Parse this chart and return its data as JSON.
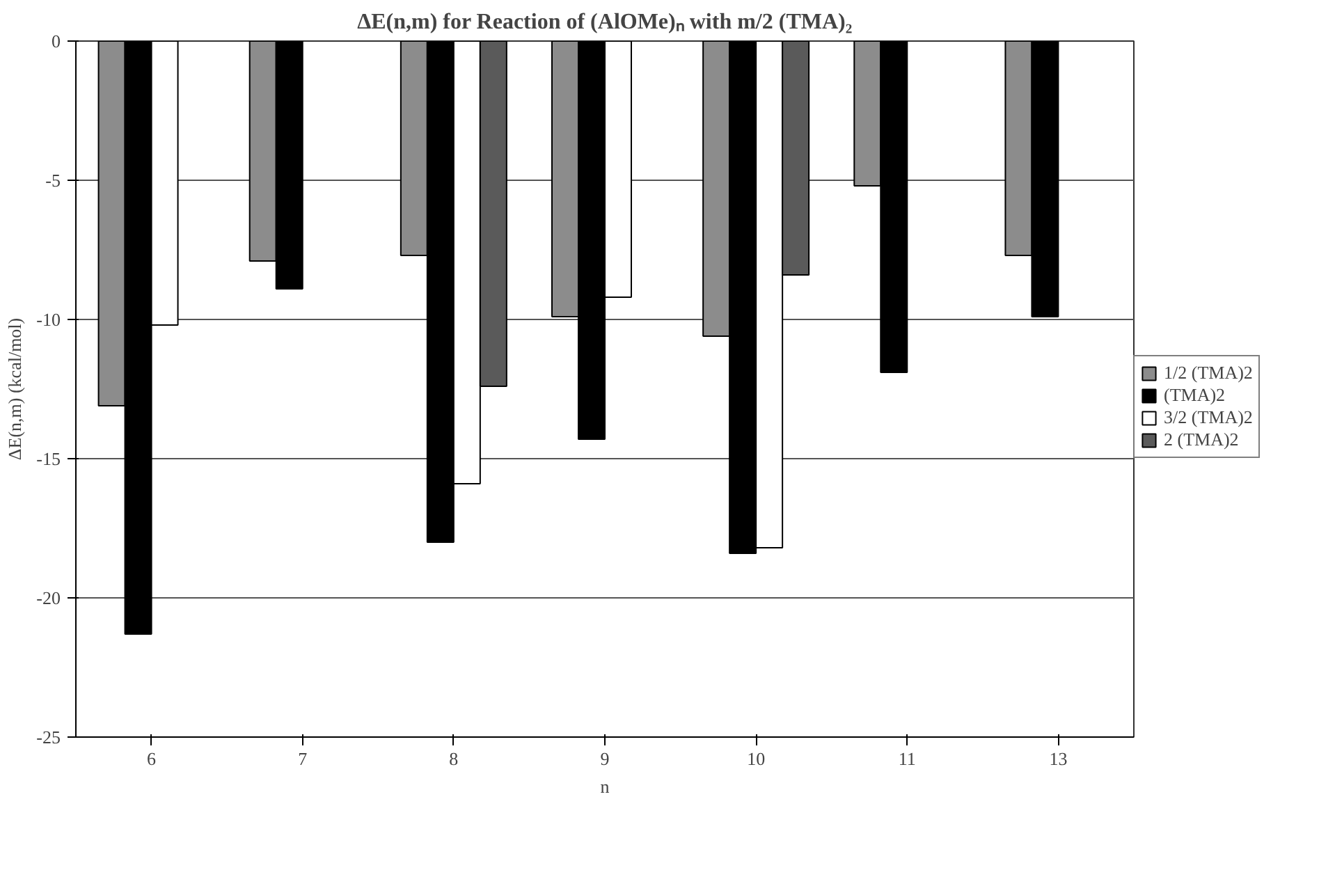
{
  "chart_data": {
    "type": "bar",
    "title": "ΔE(n,m) for Reaction of (AlOMe)ₙ with m/2 (TMA)₂",
    "xlabel": "n",
    "ylabel": "ΔE(n,m) (kcal/mol)",
    "categories": [
      "6",
      "7",
      "8",
      "9",
      "10",
      "11",
      "13"
    ],
    "series": [
      {
        "name": "1/2 (TMA)2",
        "color": "#8c8c8c",
        "values": [
          -13.1,
          -7.9,
          -7.7,
          -9.9,
          -10.6,
          -5.2,
          -7.7
        ]
      },
      {
        "name": "(TMA)2",
        "color": "#000000",
        "values": [
          -21.3,
          -8.9,
          -18.0,
          -14.3,
          -18.4,
          -11.9,
          -9.9
        ]
      },
      {
        "name": "3/2 (TMA)2",
        "color": "#ffffff",
        "values": [
          -10.2,
          null,
          -15.9,
          -9.2,
          -18.2,
          null,
          null
        ]
      },
      {
        "name": "2 (TMA)2",
        "color": "#5a5a5a",
        "values": [
          null,
          null,
          -12.4,
          null,
          -8.4,
          null,
          null
        ]
      }
    ],
    "ylim": [
      -25,
      0
    ],
    "yticks": [
      -25,
      -20,
      -15,
      -10,
      -5,
      0
    ],
    "grid": "y",
    "legend": "right"
  }
}
